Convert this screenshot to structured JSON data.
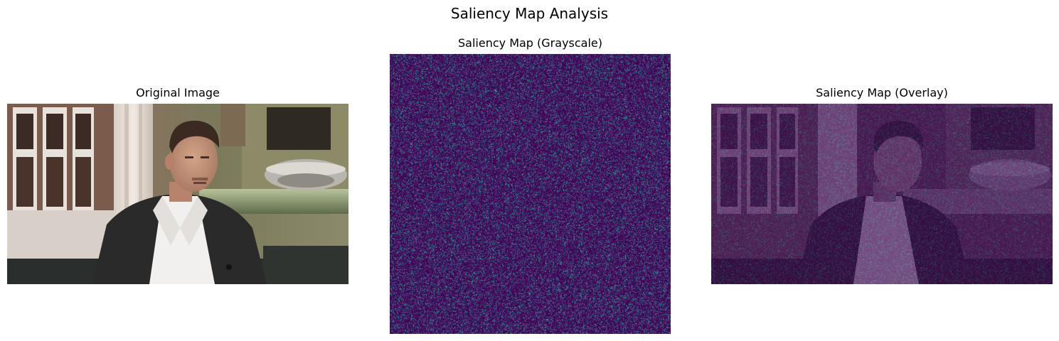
{
  "figure": {
    "title": "Saliency Map Analysis"
  },
  "panels": {
    "original": {
      "title": "Original Image"
    },
    "grayscale": {
      "title": "Saliency Map (Grayscale)"
    },
    "overlay": {
      "title": "Saliency Map (Overlay)"
    }
  },
  "colors": {
    "viridis_low": "#440154",
    "viridis_mid": "#2a788e",
    "viridis_high": "#22a884",
    "overlay_tint": "#5b1f63"
  }
}
